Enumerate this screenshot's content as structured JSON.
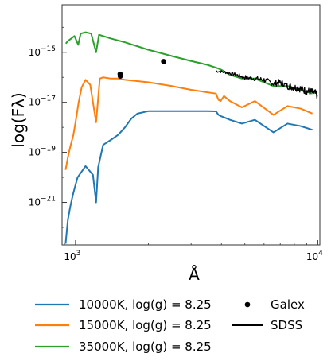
{
  "chart_data": {
    "type": "line",
    "xlabel": "Å",
    "ylabel": "log(Fλ)",
    "xscale": "log",
    "yscale": "log",
    "xlim": [
      880,
      10200
    ],
    "ylim_log10": [
      -22.7,
      -13.1
    ],
    "x_ticks": [
      {
        "value": 1000,
        "label_base": "10",
        "label_exp": "3"
      },
      {
        "value": 10000,
        "label_base": "10",
        "label_exp": "4"
      }
    ],
    "y_ticks": [
      {
        "value_log10": -15,
        "label_base": "10",
        "label_exp": "−15"
      },
      {
        "value_log10": -17,
        "label_base": "10",
        "label_exp": "−17"
      },
      {
        "value_log10": -19,
        "label_base": "10",
        "label_exp": "−19"
      },
      {
        "value_log10": -21,
        "label_base": "10",
        "label_exp": "−21"
      }
    ],
    "series": [
      {
        "name": "10000K, log(g) = 8.25",
        "color": "#1f77b4",
        "style": "line",
        "x": [
          910,
          930,
          950,
          975,
          1000,
          1020,
          1100,
          1180,
          1216,
          1240,
          1300,
          1400,
          1500,
          1600,
          1700,
          1800,
          2000,
          2500,
          3000,
          3500,
          3800,
          3890,
          3970,
          4100,
          4340,
          4861,
          5500,
          6563,
          7500,
          8500,
          9500
        ],
        "y_log10": [
          -22.65,
          -21.7,
          -21.2,
          -20.7,
          -20.3,
          -20.0,
          -19.55,
          -19.9,
          -21.0,
          -19.6,
          -18.7,
          -18.5,
          -18.3,
          -18.0,
          -17.65,
          -17.45,
          -17.35,
          -17.35,
          -17.35,
          -17.35,
          -17.36,
          -17.5,
          -17.55,
          -17.6,
          -17.7,
          -17.85,
          -17.7,
          -18.2,
          -17.85,
          -17.95,
          -18.1
        ]
      },
      {
        "name": "15000K, log(g) = 8.25",
        "color": "#ff7f0e",
        "style": "line",
        "x": [
          910,
          930,
          950,
          980,
          1000,
          1030,
          1060,
          1100,
          1150,
          1216,
          1260,
          1300,
          1400,
          1500,
          1600,
          1800,
          2000,
          2500,
          3000,
          3500,
          3800,
          3890,
          3970,
          4100,
          4340,
          4861,
          5500,
          6563,
          7500,
          8500,
          9500
        ],
        "y_log10": [
          -19.7,
          -19.2,
          -18.8,
          -18.3,
          -17.8,
          -17.0,
          -16.4,
          -16.1,
          -16.3,
          -17.8,
          -16.05,
          -16.0,
          -16.05,
          -16.05,
          -16.1,
          -16.15,
          -16.2,
          -16.35,
          -16.5,
          -16.6,
          -16.65,
          -16.9,
          -16.95,
          -16.75,
          -16.95,
          -17.2,
          -16.95,
          -17.5,
          -17.15,
          -17.25,
          -17.45
        ]
      },
      {
        "name": "35000K, log(g) = 8.25",
        "color": "#2ca02c",
        "style": "line",
        "x": [
          912,
          930,
          960,
          990,
          1026,
          1050,
          1100,
          1160,
          1216,
          1250,
          1300,
          1400,
          1600,
          2000,
          2500,
          3000,
          3500,
          3890,
          4000,
          4340,
          4861,
          5500,
          6563,
          7500,
          8500,
          9500
        ],
        "y_log10": [
          -14.65,
          -14.55,
          -14.45,
          -14.35,
          -14.7,
          -14.25,
          -14.2,
          -14.25,
          -15.0,
          -14.3,
          -14.35,
          -14.45,
          -14.6,
          -14.9,
          -15.15,
          -15.35,
          -15.5,
          -15.65,
          -15.7,
          -15.9,
          -16.05,
          -16.05,
          -16.35,
          -16.35,
          -16.5,
          -16.65
        ]
      },
      {
        "name": "SDSS",
        "color": "#000000",
        "style": "noisy-line",
        "x": [
          3800,
          4200,
          4600,
          5000,
          5500,
          6000,
          6563,
          7000,
          7500,
          8000,
          8500,
          9000,
          9500,
          9950
        ],
        "y_log10": [
          -15.75,
          -15.8,
          -15.9,
          -16.0,
          -16.05,
          -16.1,
          -16.25,
          -16.2,
          -16.35,
          -16.4,
          -16.45,
          -16.55,
          -16.6,
          -16.7
        ]
      },
      {
        "name": "Galex",
        "color": "#000000",
        "style": "points",
        "x": [
          1528,
          1530,
          2310
        ],
        "y_log10": [
          -15.87,
          -15.95,
          -15.37
        ]
      }
    ],
    "legend": {
      "placement": "below-plot",
      "entries_left": [
        {
          "label": "10000K, log(g) = 8.25",
          "color": "#1f77b4",
          "marker": "line"
        },
        {
          "label": "15000K, log(g) = 8.25",
          "color": "#ff7f0e",
          "marker": "line"
        },
        {
          "label": "35000K, log(g) = 8.25",
          "color": "#2ca02c",
          "marker": "line"
        }
      ],
      "entries_right": [
        {
          "label": "Galex",
          "color": "#000000",
          "marker": "dot"
        },
        {
          "label": "SDSS",
          "color": "#000000",
          "marker": "line"
        }
      ]
    },
    "grid": false
  }
}
